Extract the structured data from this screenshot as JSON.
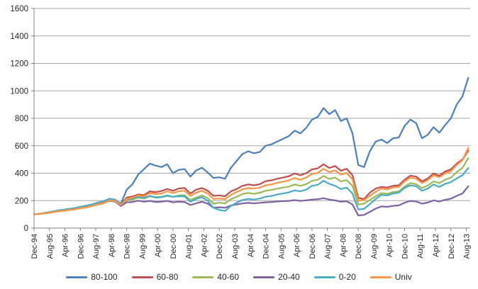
{
  "chart_data": {
    "type": "line",
    "title": "",
    "xlabel": "",
    "ylabel": "",
    "ylim": [
      0,
      1600
    ],
    "y_ticks": [
      0,
      200,
      400,
      600,
      800,
      1000,
      1200,
      1400,
      1600
    ],
    "x_tick_labels": [
      "Dec-94",
      "Aug-95",
      "Apr-96",
      "Dec-96",
      "Aug-97",
      "Apr-98",
      "Dec-98",
      "Aug-99",
      "Apr-00",
      "Dec-00",
      "Aug-01",
      "Apr-02",
      "Dec-02",
      "Aug-03",
      "Apr-04",
      "Dec-04",
      "Aug-05",
      "Apr-06",
      "Dec-06",
      "Aug-07",
      "Apr-08",
      "Dec-08",
      "Aug-09",
      "Apr-10",
      "Dec-10",
      "Aug-11",
      "Apr-12",
      "Dec-12",
      "Aug-13"
    ],
    "x_tick_interval_months": 8,
    "x_total_months": 226,
    "points_interval_months": 3,
    "grid": "horizontal",
    "legend_position": "bottom",
    "axis_color": "#808080",
    "grid_color": "#a6a6a6",
    "tick_text_color": "#262626",
    "series": [
      {
        "name": "80-100",
        "color": "#4F81BD",
        "values": [
          100,
          105,
          112,
          118,
          128,
          132,
          138,
          142,
          152,
          158,
          168,
          182,
          192,
          210,
          205,
          178,
          280,
          320,
          390,
          430,
          470,
          455,
          445,
          465,
          400,
          425,
          430,
          375,
          420,
          440,
          405,
          365,
          370,
          360,
          440,
          490,
          540,
          560,
          545,
          555,
          600,
          610,
          630,
          650,
          670,
          710,
          690,
          730,
          790,
          810,
          875,
          830,
          860,
          780,
          800,
          690,
          460,
          445,
          560,
          630,
          645,
          620,
          655,
          660,
          745,
          790,
          765,
          655,
          680,
          735,
          695,
          750,
          800,
          900,
          960,
          1095
        ]
      },
      {
        "name": "60-80",
        "color": "#C0504D",
        "values": [
          100,
          104,
          110,
          115,
          124,
          129,
          134,
          139,
          148,
          154,
          163,
          176,
          186,
          205,
          200,
          172,
          222,
          230,
          245,
          240,
          268,
          262,
          270,
          285,
          272,
          288,
          292,
          252,
          280,
          292,
          272,
          235,
          238,
          232,
          268,
          285,
          308,
          318,
          312,
          320,
          342,
          348,
          360,
          368,
          378,
          398,
          385,
          400,
          428,
          435,
          465,
          438,
          452,
          418,
          432,
          385,
          218,
          212,
          258,
          288,
          300,
          295,
          308,
          312,
          352,
          382,
          375,
          340,
          362,
          398,
          382,
          412,
          428,
          470,
          500,
          565
        ]
      },
      {
        "name": "40-60",
        "color": "#9BBB59",
        "values": [
          100,
          103,
          108,
          113,
          121,
          126,
          131,
          136,
          144,
          150,
          159,
          171,
          180,
          198,
          193,
          163,
          202,
          208,
          222,
          215,
          232,
          225,
          228,
          238,
          228,
          238,
          240,
          205,
          222,
          238,
          218,
          178,
          185,
          180,
          210,
          228,
          248,
          256,
          250,
          258,
          272,
          278,
          288,
          295,
          302,
          318,
          308,
          320,
          345,
          352,
          380,
          358,
          368,
          340,
          350,
          308,
          172,
          178,
          205,
          232,
          255,
          250,
          262,
          268,
          302,
          328,
          320,
          292,
          310,
          340,
          328,
          352,
          368,
          408,
          438,
          510
        ]
      },
      {
        "name": "20-40",
        "color": "#8064A2",
        "values": [
          100,
          104,
          110,
          116,
          126,
          131,
          137,
          143,
          152,
          158,
          167,
          178,
          186,
          200,
          194,
          160,
          188,
          190,
          200,
          192,
          198,
          190,
          192,
          198,
          188,
          192,
          190,
          168,
          180,
          192,
          178,
          148,
          152,
          148,
          165,
          172,
          180,
          184,
          180,
          184,
          188,
          190,
          194,
          196,
          198,
          204,
          198,
          202,
          208,
          210,
          218,
          208,
          202,
          192,
          196,
          172,
          92,
          96,
          118,
          142,
          158,
          155,
          162,
          165,
          185,
          198,
          194,
          178,
          186,
          202,
          194,
          206,
          214,
          235,
          252,
          305
        ]
      },
      {
        "name": "0-20",
        "color": "#4BACC6",
        "values": [
          100,
          105,
          112,
          119,
          128,
          134,
          140,
          146,
          156,
          163,
          173,
          186,
          196,
          214,
          208,
          172,
          210,
          215,
          228,
          220,
          235,
          222,
          225,
          235,
          228,
          232,
          230,
          192,
          212,
          225,
          198,
          148,
          132,
          125,
          162,
          185,
          205,
          212,
          208,
          215,
          228,
          234,
          245,
          252,
          260,
          275,
          268,
          280,
          308,
          315,
          345,
          322,
          308,
          285,
          295,
          252,
          135,
          140,
          175,
          212,
          242,
          238,
          252,
          258,
          292,
          312,
          305,
          272,
          288,
          318,
          300,
          322,
          335,
          362,
          385,
          438
        ]
      },
      {
        "name": "Univ",
        "color": "#F79646",
        "values": [
          100,
          103,
          109,
          114,
          122,
          127,
          132,
          137,
          146,
          152,
          161,
          174,
          183,
          202,
          197,
          168,
          212,
          222,
          238,
          232,
          255,
          248,
          252,
          268,
          255,
          268,
          272,
          235,
          258,
          272,
          252,
          212,
          215,
          210,
          242,
          262,
          282,
          292,
          288,
          295,
          312,
          318,
          330,
          338,
          348,
          365,
          352,
          368,
          395,
          402,
          432,
          408,
          420,
          390,
          402,
          355,
          198,
          205,
          235,
          265,
          288,
          282,
          295,
          300,
          340,
          368,
          360,
          328,
          350,
          385,
          370,
          398,
          415,
          460,
          495,
          585
        ]
      }
    ]
  }
}
